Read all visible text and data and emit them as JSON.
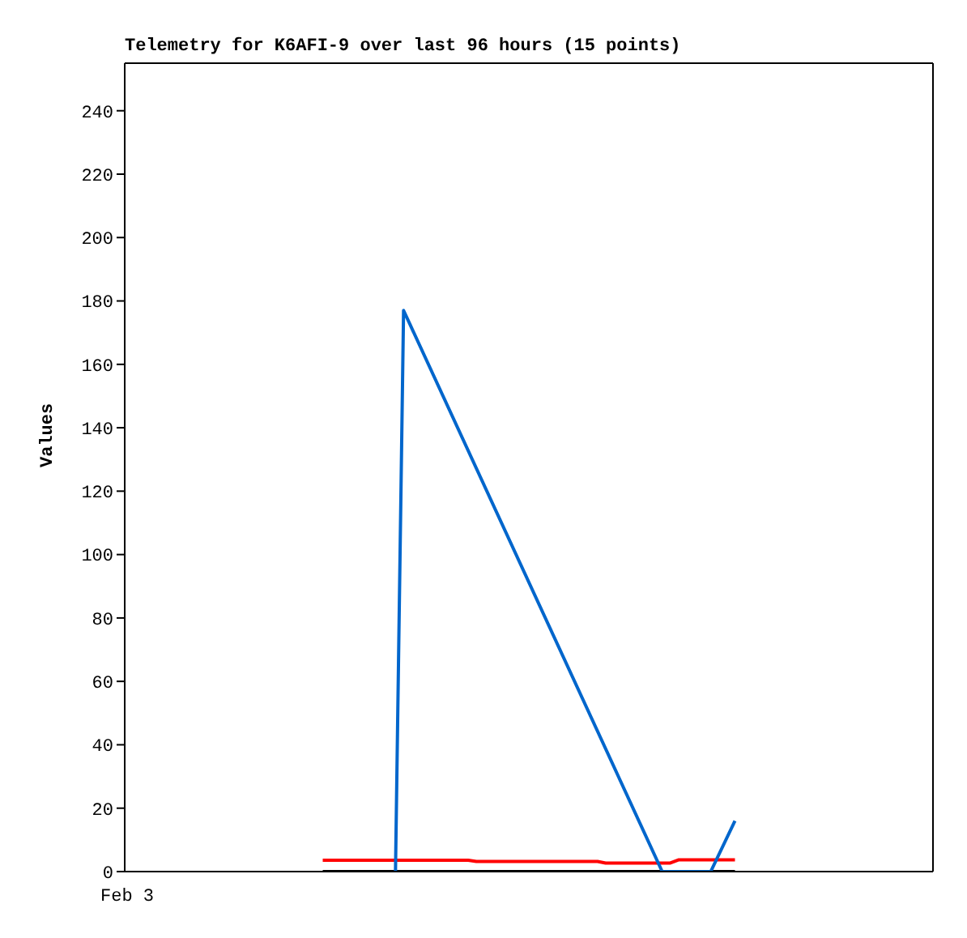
{
  "chart_data": {
    "type": "line",
    "title": "Telemetry for K6AFI-9 over last 96 hours (15 points)",
    "ylabel": "Values",
    "annotations": [
      "Feb 3"
    ],
    "ylim": [
      0,
      255
    ],
    "yticks": [
      0,
      20,
      40,
      60,
      80,
      100,
      120,
      140,
      160,
      180,
      200,
      220,
      240
    ],
    "marker": "none",
    "line_style": "solid",
    "categories": [
      null,
      null,
      null,
      null,
      null,
      null,
      null,
      null,
      null,
      null,
      null,
      null,
      null,
      null,
      null,
      null,
      null,
      null,
      null,
      null,
      null,
      null,
      null,
      null,
      null,
      null,
      null,
      null,
      null,
      null,
      null,
      null,
      null,
      null,
      null,
      null,
      null,
      null,
      null,
      null,
      null,
      null,
      null,
      null,
      null,
      null,
      null,
      null,
      null,
      null,
      null,
      null,
      null,
      null,
      null,
      null,
      null,
      null,
      null,
      null,
      null,
      null,
      null,
      null,
      null,
      null,
      null,
      null,
      null,
      null,
      null,
      null,
      null,
      null,
      null,
      null,
      null,
      null,
      null,
      null,
      null,
      null,
      null,
      null,
      null,
      null,
      null,
      null,
      null,
      null,
      null,
      null,
      null,
      null,
      null,
      null,
      null,
      null,
      null,
      null
    ],
    "series": [
      {
        "color": "#ff0000",
        "values": [
          null,
          null,
          null,
          null,
          null,
          null,
          null,
          null,
          null,
          null,
          null,
          null,
          null,
          null,
          null,
          null,
          null,
          null,
          null,
          null,
          null,
          null,
          null,
          null,
          3.6,
          null,
          null,
          null,
          null,
          null,
          null,
          null,
          null,
          null,
          null,
          null,
          null,
          null,
          null,
          null,
          null,
          null,
          3.6,
          3.2,
          null,
          null,
          null,
          null,
          null,
          null,
          null,
          null,
          null,
          null,
          null,
          null,
          null,
          null,
          3.2,
          2.7,
          null,
          null,
          null,
          null,
          null,
          null,
          null,
          2.7,
          3.7,
          null,
          null,
          null,
          null,
          null,
          null,
          3.7,
          null,
          null,
          null,
          null,
          null,
          null,
          null,
          null,
          null,
          null,
          null,
          null,
          null,
          null,
          null,
          null,
          null,
          null,
          null,
          null,
          null,
          null,
          null,
          null
        ]
      },
      {
        "color": "#000000",
        "values": [
          null,
          null,
          null,
          null,
          null,
          null,
          null,
          null,
          null,
          null,
          null,
          null,
          null,
          null,
          null,
          null,
          null,
          null,
          null,
          null,
          null,
          null,
          null,
          null,
          0,
          null,
          null,
          null,
          null,
          null,
          null,
          null,
          null,
          null,
          null,
          null,
          null,
          null,
          null,
          null,
          null,
          null,
          null,
          null,
          null,
          null,
          null,
          null,
          null,
          null,
          null,
          null,
          null,
          null,
          null,
          null,
          null,
          null,
          null,
          null,
          null,
          null,
          null,
          null,
          null,
          null,
          null,
          null,
          null,
          null,
          null,
          null,
          null,
          null,
          null,
          0,
          null,
          null,
          null,
          null,
          null,
          null,
          null,
          null,
          null,
          null,
          null,
          null,
          null,
          null,
          null,
          null,
          null,
          null,
          null,
          null,
          null,
          null,
          null,
          null
        ]
      },
      {
        "color": "#0066cc",
        "values": [
          null,
          null,
          null,
          null,
          null,
          null,
          null,
          null,
          null,
          null,
          null,
          null,
          null,
          null,
          null,
          null,
          null,
          null,
          null,
          null,
          null,
          null,
          null,
          null,
          null,
          null,
          null,
          null,
          null,
          null,
          null,
          null,
          null,
          0,
          177,
          null,
          null,
          null,
          null,
          null,
          null,
          null,
          null,
          null,
          null,
          null,
          null,
          null,
          null,
          null,
          null,
          null,
          null,
          null,
          null,
          null,
          null,
          null,
          null,
          null,
          null,
          null,
          null,
          null,
          null,
          null,
          0,
          null,
          null,
          null,
          null,
          null,
          0,
          null,
          null,
          16,
          null,
          null,
          null,
          null,
          null,
          null,
          null,
          null,
          null,
          null,
          null,
          null,
          null,
          null,
          null,
          null,
          null,
          null,
          null,
          null,
          null,
          null,
          null,
          null
        ]
      }
    ]
  }
}
